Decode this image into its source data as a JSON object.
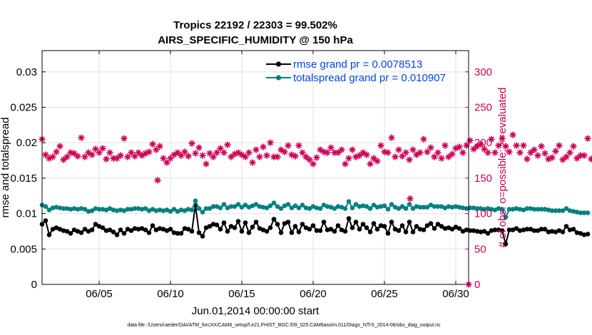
{
  "chart_data": {
    "type": "line",
    "title": "Tropics 22192 / 22303 = 99.502%",
    "subtitle": "AIRS_SPECIFIC_HUMIDITY @ 150 hPa",
    "xlabel": "Jun.01,2014 00:00:00 start",
    "ylabel": "rmse and totalspread",
    "ylabel_right": "# of obs: o=possible; ×=evaluated",
    "footnote": "data file: /Users/raeder/DAI/ATM_forcXX/CAM6_setup/f.e21.FHIST_BGC.f09_025.CAM6assim.011/Diags_NTrS_2014-06/obs_diag_output.nc",
    "xlim": [
      1,
      30.9
    ],
    "ylim": [
      0,
      0.033
    ],
    "ylim_right": [
      0,
      330
    ],
    "x_ticks": [
      5,
      10,
      15,
      20,
      25,
      30
    ],
    "x_tick_labels": [
      "06/05",
      "06/10",
      "06/15",
      "06/20",
      "06/25",
      "06/30"
    ],
    "y_ticks": [
      0,
      0.005,
      0.01,
      0.015,
      0.02,
      0.025,
      0.03
    ],
    "y_tick_labels": [
      "0",
      "0.005",
      "0.01",
      "0.015",
      "0.02",
      "0.025",
      "0.03"
    ],
    "y_right_ticks": [
      0,
      50,
      100,
      150,
      200,
      250,
      300
    ],
    "y_right_tick_labels": [
      "0",
      "50",
      "100",
      "150",
      "200",
      "250",
      "300"
    ],
    "grid": true,
    "legend_position": "top-right",
    "colors": {
      "rmse": "#000000",
      "spread": "#008080",
      "obs": "#cc0055"
    },
    "series": [
      {
        "name": "rmse grand pr = 0.0078513",
        "color": "#000000",
        "x_start": 1.0,
        "x_step": 0.25,
        "values": [
          0.0085,
          0.009,
          0.007,
          0.0078,
          0.008,
          0.0078,
          0.0076,
          0.0075,
          0.0072,
          0.0077,
          0.0075,
          0.0073,
          0.0078,
          0.0075,
          0.0077,
          0.0085,
          0.0082,
          0.008,
          0.0076,
          0.0077,
          0.0074,
          0.007,
          0.0077,
          0.0072,
          0.0078,
          0.0076,
          0.0079,
          0.0078,
          0.0079,
          0.0077,
          0.0073,
          0.0083,
          0.0077,
          0.0079,
          0.0078,
          0.0076,
          0.0078,
          0.0073,
          0.0072,
          0.0072,
          0.0079,
          0.0078,
          0.0075,
          0.0112,
          0.0073,
          0.0068,
          0.008,
          0.0082,
          0.0085,
          0.0084,
          0.0078,
          0.0087,
          0.0075,
          0.0082,
          0.008,
          0.0089,
          0.0075,
          0.0087,
          0.0073,
          0.0081,
          0.0088,
          0.0079,
          0.0077,
          0.0075,
          0.008,
          0.0092,
          0.0085,
          0.0073,
          0.0086,
          0.0088,
          0.0073,
          0.0082,
          0.0074,
          0.0085,
          0.008,
          0.0078,
          0.0083,
          0.0076,
          0.0076,
          0.0088,
          0.0077,
          0.0078,
          0.0075,
          0.0083,
          0.0077,
          0.0075,
          0.0093,
          0.008,
          0.0088,
          0.0078,
          0.0085,
          0.008,
          0.0074,
          0.0086,
          0.0078,
          0.0083,
          0.0082,
          0.0072,
          0.0088,
          0.0078,
          0.0076,
          0.0083,
          0.0074,
          0.0088,
          0.0074,
          0.0082,
          0.0078,
          0.0077,
          0.0083,
          0.0086,
          0.0079,
          0.0085,
          0.0082,
          0.0079,
          0.008,
          0.0078,
          0.0081,
          0.0079,
          0.0075,
          0.0077,
          0.0076,
          0.0076,
          0.0075,
          0.0074,
          0.0075,
          0.0072,
          0.0076,
          0.0077,
          0.0077,
          0.0076,
          0.0057,
          0.0077,
          0.0077,
          0.0079,
          0.0076,
          0.0077,
          0.0078,
          0.0078,
          0.0076,
          0.0076,
          0.0078,
          0.0078,
          0.0074,
          0.0075,
          0.0074,
          0.0076,
          0.0074,
          0.0082,
          0.0077,
          0.0078,
          0.0073,
          0.0072,
          0.007,
          0.0071
        ]
      },
      {
        "name": "totalspread grand pr = 0.010907",
        "color": "#008080",
        "x_start": 1.0,
        "x_step": 0.25,
        "values": [
          0.0112,
          0.011,
          0.0105,
          0.0108,
          0.0109,
          0.0108,
          0.0107,
          0.0107,
          0.0106,
          0.0107,
          0.0106,
          0.0107,
          0.0106,
          0.0103,
          0.0104,
          0.0107,
          0.0106,
          0.0106,
          0.0105,
          0.0107,
          0.0105,
          0.0104,
          0.0105,
          0.0104,
          0.0106,
          0.0106,
          0.0107,
          0.0107,
          0.0106,
          0.0107,
          0.0104,
          0.0106,
          0.0104,
          0.0105,
          0.0104,
          0.0105,
          0.0103,
          0.0106,
          0.0103,
          0.0105,
          0.0104,
          0.0106,
          0.0105,
          0.0118,
          0.0107,
          0.0102,
          0.0107,
          0.0107,
          0.011,
          0.011,
          0.0108,
          0.0113,
          0.0108,
          0.011,
          0.011,
          0.0113,
          0.0109,
          0.0112,
          0.0109,
          0.0111,
          0.0113,
          0.011,
          0.0109,
          0.0108,
          0.0111,
          0.0115,
          0.011,
          0.0107,
          0.0111,
          0.0113,
          0.0108,
          0.0111,
          0.0108,
          0.0112,
          0.0108,
          0.0107,
          0.011,
          0.0108,
          0.0107,
          0.0112,
          0.011,
          0.0109,
          0.0107,
          0.011,
          0.0109,
          0.0107,
          0.0117,
          0.0108,
          0.0113,
          0.011,
          0.0111,
          0.011,
          0.0107,
          0.0112,
          0.0109,
          0.011,
          0.0111,
          0.0106,
          0.0113,
          0.0109,
          0.0107,
          0.011,
          0.0107,
          0.0113,
          0.0107,
          0.011,
          0.0109,
          0.0109,
          0.0109,
          0.0112,
          0.011,
          0.011,
          0.011,
          0.0108,
          0.011,
          0.0109,
          0.011,
          0.0109,
          0.0108,
          0.0107,
          0.0108,
          0.0108,
          0.0107,
          0.0107,
          0.0106,
          0.0107,
          0.0106,
          0.0105,
          0.0107,
          0.0106,
          0.0095,
          0.0106,
          0.0106,
          0.0107,
          0.0106,
          0.0105,
          0.0107,
          0.0107,
          0.0106,
          0.0106,
          0.0106,
          0.0106,
          0.0105,
          0.0104,
          0.0104,
          0.0104,
          0.0104,
          0.0107,
          0.0104,
          0.0103,
          0.0102,
          0.0101,
          0.0101,
          0.0101
        ]
      },
      {
        "name": "# of obs",
        "axis": "right",
        "marker": "star",
        "color": "#cc0055",
        "x_start": 1.0,
        "x_step": 0.25,
        "values": [
          205,
          183,
          178,
          180,
          187,
          195,
          176,
          180,
          186,
          185,
          181,
          207,
          180,
          186,
          183,
          191,
          186,
          192,
          177,
          186,
          178,
          178,
          182,
          206,
          180,
          186,
          181,
          186,
          182,
          185,
          187,
          198,
          190,
          195,
          178,
          172,
          178,
          183,
          186,
          182,
          187,
          181,
          199,
          185,
          193,
          182,
          170,
          185,
          180,
          186,
          192,
          186,
          197,
          180,
          184,
          186,
          183,
          180,
          186,
          172,
          190,
          180,
          194,
          182,
          200,
          180,
          180,
          190,
          187,
          196,
          183,
          181,
          196,
          186,
          180,
          176,
          170,
          179,
          190,
          187,
          186,
          193,
          186,
          186,
          190,
          170,
          178,
          190,
          180,
          182,
          186,
          183,
          170,
          178,
          174,
          196,
          187,
          186,
          207,
          180,
          190,
          181,
          186,
          176,
          190,
          183,
          186,
          205,
          187,
          193,
          180,
          186,
          178,
          196,
          180,
          184,
          192,
          194,
          186,
          196,
          203,
          191,
          195,
          198,
          191,
          186,
          205,
          186,
          196,
          206,
          195,
          187,
          211,
          196,
          186,
          196,
          177,
          186,
          190,
          182,
          195,
          185,
          177,
          179,
          188,
          196,
          176,
          180,
          186,
          195,
          178,
          182,
          182,
          206,
          177
        ]
      },
      {
        "name": "# of obs (outliers)",
        "axis": "right",
        "marker": "star",
        "color": "#cc0055",
        "x": [
          9.1,
          26.8
        ],
        "values": [
          147,
          121
        ]
      }
    ],
    "legend": [
      "rmse grand pr = 0.0078513",
      "totalspread grand pr = 0.010907"
    ]
  }
}
